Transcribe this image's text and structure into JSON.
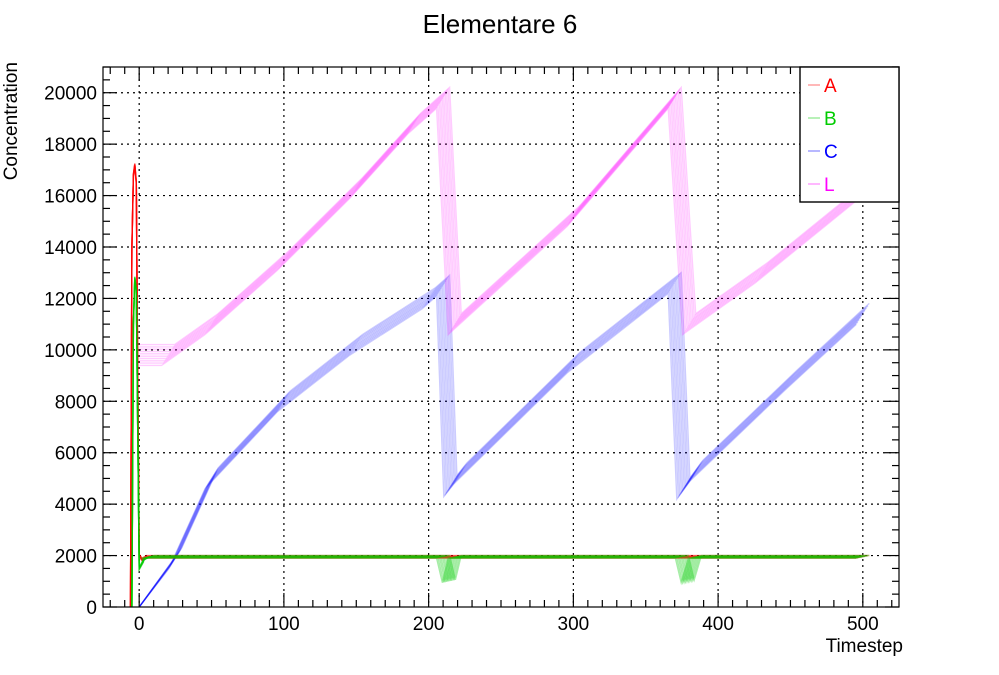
{
  "chart_data": {
    "type": "line",
    "title": "Elementare 6",
    "xlabel": "Timestep",
    "ylabel": "Concentration",
    "xlim": [
      -25,
      525
    ],
    "ylim": [
      0,
      21000
    ],
    "x_ticks": [
      0,
      100,
      200,
      300,
      400,
      500
    ],
    "y_ticks": [
      0,
      2000,
      4000,
      6000,
      8000,
      10000,
      12000,
      14000,
      16000,
      18000,
      20000
    ],
    "grid": true,
    "legend_position": "top-right",
    "series": [
      {
        "name": "A",
        "color": "#ff0000",
        "runs": 10,
        "points": [
          [
            -6,
            0
          ],
          [
            -5,
            14000
          ],
          [
            -4,
            16800
          ],
          [
            -3,
            17200
          ],
          [
            -2,
            16500
          ],
          [
            -1,
            9000
          ],
          [
            0,
            2000
          ],
          [
            2,
            1850
          ],
          [
            5,
            1950
          ],
          [
            500,
            1950
          ]
        ]
      },
      {
        "name": "B",
        "color": "#00cc00",
        "runs": 10,
        "points": [
          [
            -5,
            0
          ],
          [
            -4,
            11000
          ],
          [
            -3,
            12800
          ],
          [
            -2,
            12300
          ],
          [
            -1,
            7000
          ],
          [
            0,
            1500
          ],
          [
            3,
            1800
          ],
          [
            6,
            1950
          ],
          [
            210,
            1950
          ],
          [
            214,
            1000
          ],
          [
            218,
            1950
          ],
          [
            375,
            1950
          ],
          [
            379,
            1000
          ],
          [
            384,
            1950
          ],
          [
            500,
            1950
          ]
        ]
      },
      {
        "name": "C",
        "color": "#0000ff",
        "runs": 10,
        "points": [
          [
            0,
            0
          ],
          [
            25,
            1900
          ],
          [
            50,
            5000
          ],
          [
            100,
            8000
          ],
          [
            150,
            10200
          ],
          [
            200,
            12000
          ],
          [
            210,
            12500
          ],
          [
            215,
            4700
          ],
          [
            222,
            5200
          ],
          [
            300,
            9500
          ],
          [
            370,
            12600
          ],
          [
            376,
            4600
          ],
          [
            385,
            5300
          ],
          [
            450,
            8800
          ],
          [
            500,
            11400
          ]
        ]
      },
      {
        "name": "L",
        "color": "#ff00ff",
        "runs": 10,
        "points": [
          [
            0,
            9800
          ],
          [
            20,
            9800
          ],
          [
            50,
            11000
          ],
          [
            100,
            13500
          ],
          [
            150,
            16300
          ],
          [
            190,
            18800
          ],
          [
            210,
            19800
          ],
          [
            218,
            11000
          ],
          [
            300,
            15200
          ],
          [
            370,
            19800
          ],
          [
            380,
            11000
          ],
          [
            430,
            13000
          ],
          [
            500,
            16200
          ]
        ]
      }
    ]
  }
}
